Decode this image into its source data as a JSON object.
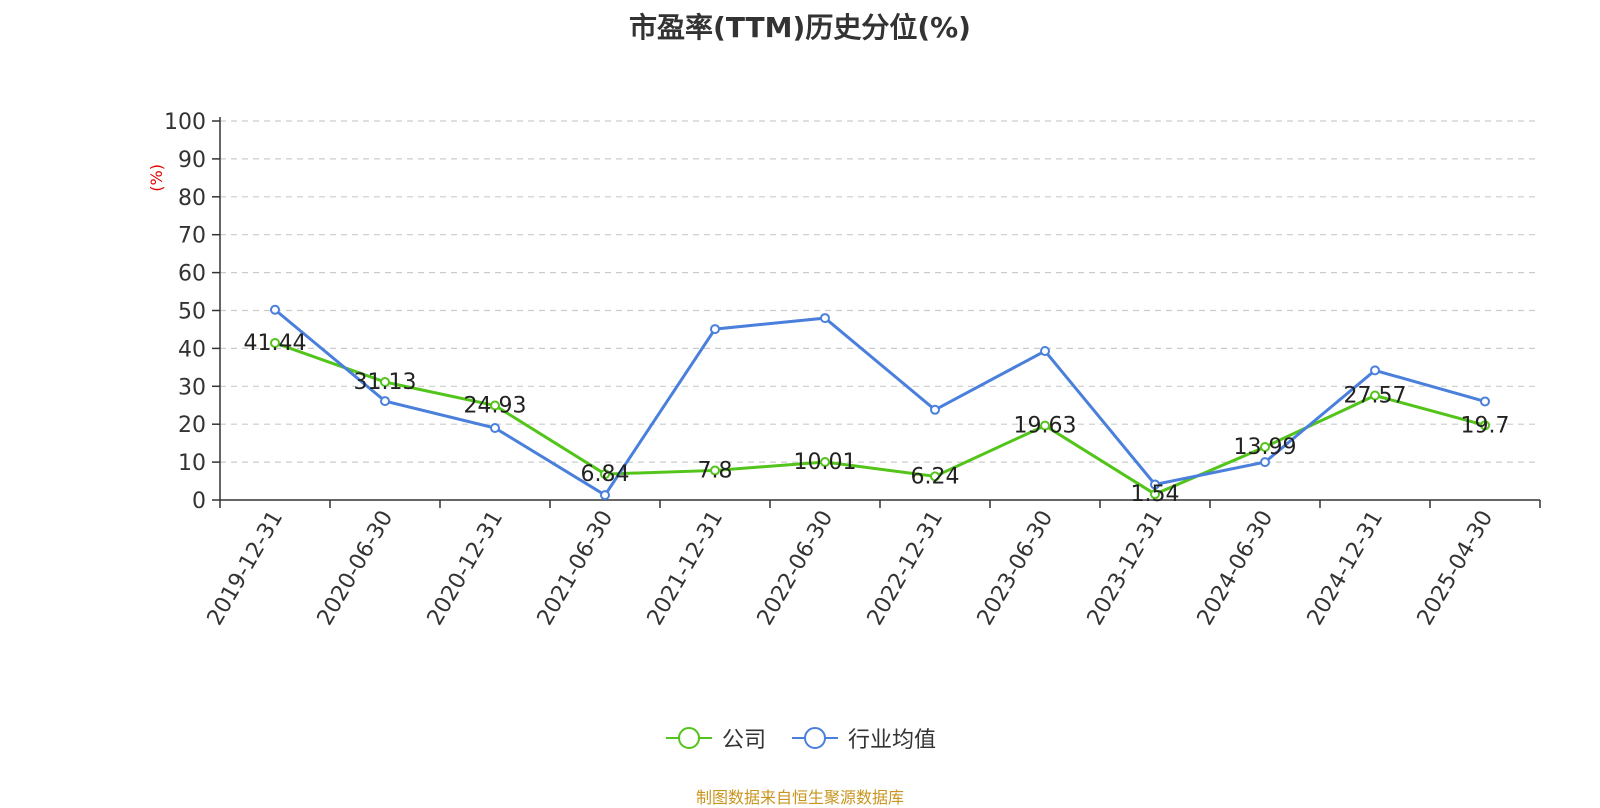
{
  "chart_data": {
    "type": "line",
    "title": "市盈率(TTM)历史分位(%)",
    "ylabel": "(%)",
    "ylim": [
      0,
      100
    ],
    "yticks": [
      0,
      10,
      20,
      30,
      40,
      50,
      60,
      70,
      80,
      90,
      100
    ],
    "categories": [
      "2019-12-31",
      "2020-06-30",
      "2020-12-31",
      "2021-06-30",
      "2021-12-31",
      "2022-06-30",
      "2022-12-31",
      "2023-06-30",
      "2023-12-31",
      "2024-06-30",
      "2024-12-31",
      "2025-04-30"
    ],
    "series": [
      {
        "name": "公司",
        "color": "#52c41a",
        "values": [
          41.44,
          31.13,
          24.93,
          6.84,
          7.8,
          10.01,
          6.24,
          19.63,
          1.54,
          13.99,
          27.57,
          19.7
        ],
        "labels": [
          "41.44",
          "31.13",
          "24.93",
          "6.84",
          "7.8",
          "10.01",
          "6.24",
          "19.63",
          "1.54",
          "13.99",
          "27.57",
          "19.7"
        ]
      },
      {
        "name": "行业均值",
        "color": "#4a7fdc",
        "values": [
          50.2,
          26.1,
          19.0,
          1.3,
          45.1,
          48.0,
          23.8,
          39.3,
          4.1,
          10.0,
          34.2,
          26.0
        ]
      }
    ],
    "grid": "horizontal-dashed",
    "legend_position": "bottom-center"
  },
  "source_note": "制图数据来自恒生聚源数据库"
}
